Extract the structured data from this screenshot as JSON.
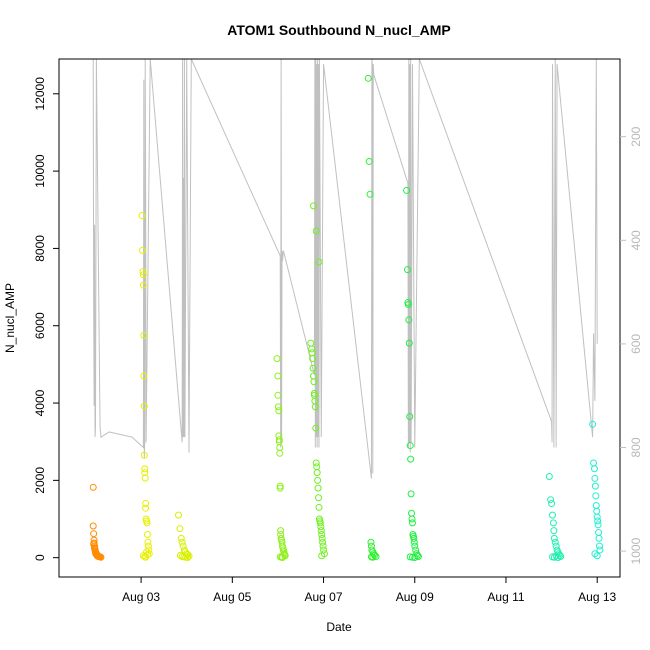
{
  "chart_data": {
    "type": "scatter",
    "title": "ATOM1 Southbound N_nucl_AMP",
    "xlabel": "Date",
    "ylabel": "N_nucl_AMP",
    "x_ticks": [
      "Aug 03",
      "Aug 05",
      "Aug 07",
      "Aug 09",
      "Aug 11",
      "Aug 13"
    ],
    "x_tick_values": [
      3,
      5,
      7,
      9,
      11,
      13
    ],
    "xlim": [
      1.2,
      13.5
    ],
    "ylim": [
      -500,
      12900
    ],
    "y_ticks": [
      0,
      2000,
      4000,
      6000,
      8000,
      10000,
      12000
    ],
    "y_right_ticks": [
      200,
      400,
      600,
      800,
      1000
    ],
    "y_right_lim": [
      1050,
      50
    ],
    "y_right_color": "#c0c0c0",
    "legend": "none",
    "grid": false,
    "point_style": "open-circle",
    "series": [
      {
        "color": "#ff8c00",
        "x": [
          1.95,
          1.95,
          1.96,
          1.97,
          1.97,
          1.98,
          1.98,
          1.99,
          1.99,
          2.0,
          2.0,
          2.01,
          2.02,
          2.03,
          2.04,
          2.05,
          2.06,
          2.08,
          2.1,
          2.12,
          1.96,
          1.98,
          2.0,
          2.02,
          2.04,
          2.06
        ],
        "values": [
          1820,
          820,
          620,
          450,
          380,
          300,
          260,
          220,
          180,
          150,
          120,
          100,
          80,
          60,
          50,
          40,
          30,
          30,
          20,
          10,
          350,
          240,
          160,
          110,
          70,
          40
        ]
      },
      {
        "color": "#e8f000",
        "x": [
          3.02,
          3.03,
          3.04,
          3.05,
          3.05,
          3.06,
          3.06,
          3.07,
          3.07,
          3.08,
          3.08,
          3.09,
          3.1,
          3.1,
          3.11,
          3.12,
          3.13,
          3.14,
          3.15,
          3.16,
          3.17,
          3.18,
          3.05,
          3.08,
          3.1,
          3.12,
          3.14
        ],
        "values": [
          8850,
          7950,
          7400,
          7320,
          7050,
          5750,
          4700,
          3920,
          2650,
          2300,
          2200,
          2060,
          1400,
          1280,
          1000,
          950,
          900,
          600,
          400,
          300,
          200,
          100,
          50,
          20,
          10,
          150,
          80
        ]
      },
      {
        "color": "#d8f000",
        "x": [
          3.82,
          3.85,
          3.88,
          3.9,
          3.92,
          3.95,
          3.97,
          4.0,
          4.02,
          4.05,
          3.86,
          3.9,
          3.94,
          3.98,
          4.02
        ],
        "values": [
          1100,
          750,
          500,
          400,
          300,
          200,
          150,
          100,
          80,
          40,
          60,
          30,
          20,
          10,
          5
        ]
      },
      {
        "color": "#90f020",
        "x": [
          5.98,
          6.0,
          6.0,
          6.01,
          6.02,
          6.02,
          6.03,
          6.03,
          6.04,
          6.04,
          6.05,
          6.05,
          6.06,
          6.06,
          6.07,
          6.08,
          6.09,
          6.1,
          6.11,
          6.12,
          6.13,
          6.14,
          6.15,
          6.16,
          6.05,
          6.08,
          6.1
        ],
        "values": [
          5150,
          4700,
          4200,
          3900,
          3800,
          3150,
          3050,
          3000,
          2850,
          2700,
          1850,
          1800,
          700,
          600,
          500,
          450,
          400,
          300,
          250,
          200,
          150,
          100,
          80,
          50,
          20,
          10,
          5
        ]
      },
      {
        "color": "#70f020",
        "x": [
          6.72,
          6.74,
          6.75,
          6.76,
          6.77,
          6.78,
          6.79,
          6.8,
          6.8,
          6.81,
          6.82,
          6.83,
          6.84,
          6.85,
          6.86,
          6.87,
          6.88,
          6.89,
          6.9,
          6.91,
          6.92,
          6.93,
          6.94,
          6.95,
          6.96,
          6.97,
          6.98,
          6.99,
          7.0,
          7.02,
          6.78,
          6.84,
          6.9,
          6.96
        ],
        "values": [
          5550,
          5400,
          5300,
          5150,
          4900,
          4700,
          4550,
          4250,
          4200,
          4050,
          3900,
          3350,
          2450,
          2350,
          2200,
          2000,
          1800,
          1550,
          1300,
          1000,
          950,
          900,
          800,
          700,
          600,
          500,
          400,
          300,
          200,
          100,
          9100,
          8450,
          7650,
          50
        ]
      },
      {
        "color": "#30f030",
        "x": [
          7.98,
          8.0,
          8.02,
          8.04,
          8.05,
          8.06,
          8.08,
          8.1,
          8.12,
          8.15,
          8.05,
          8.08
        ],
        "values": [
          12400,
          10250,
          9400,
          400,
          300,
          200,
          150,
          100,
          60,
          30,
          20,
          10
        ]
      },
      {
        "color": "#20f040",
        "x": [
          8.82,
          8.84,
          8.85,
          8.86,
          8.87,
          8.88,
          8.89,
          8.9,
          8.91,
          8.92,
          8.93,
          8.94,
          8.95,
          8.96,
          8.97,
          8.98,
          8.99,
          9.0,
          9.02,
          9.04,
          9.06,
          9.08,
          8.9,
          8.95,
          9.0
        ],
        "values": [
          9500,
          7450,
          6600,
          6550,
          6150,
          5550,
          3650,
          2900,
          2550,
          1650,
          1150,
          1000,
          900,
          600,
          550,
          500,
          400,
          300,
          200,
          100,
          60,
          30,
          20,
          10,
          5
        ]
      },
      {
        "color": "#20f0b0",
        "x": [
          11.95,
          11.98,
          12.0,
          12.02,
          12.04,
          12.05,
          12.06,
          12.08,
          12.1,
          12.12,
          12.14,
          12.16,
          12.18,
          12.2,
          12.02,
          12.06,
          12.1,
          12.14
        ],
        "values": [
          2100,
          1500,
          1400,
          1100,
          900,
          700,
          500,
          400,
          300,
          200,
          150,
          100,
          60,
          30,
          20,
          10,
          50,
          5
        ]
      },
      {
        "color": "#20f0d0",
        "x": [
          12.9,
          12.92,
          12.94,
          12.95,
          12.96,
          12.97,
          12.98,
          12.99,
          13.0,
          13.01,
          13.02,
          13.03,
          13.04,
          13.05,
          13.06,
          12.95,
          13.0
        ],
        "values": [
          3450,
          2450,
          2300,
          2050,
          1850,
          1600,
          1350,
          1200,
          1050,
          950,
          850,
          650,
          500,
          300,
          200,
          100,
          50
        ]
      }
    ],
    "secondary_series": {
      "color": "#c0c0c0",
      "type": "line",
      "x": [
        1.95,
        1.96,
        1.97,
        1.98,
        1.99,
        2.0,
        2.01,
        2.02,
        2.1,
        2.12,
        2.3,
        2.8,
        3.05,
        3.06,
        3.07,
        3.08,
        3.09,
        3.1,
        3.11,
        3.2,
        3.9,
        3.91,
        3.92,
        3.93,
        3.94,
        3.95,
        3.96,
        4.0,
        4.05,
        4.1,
        6.05,
        6.06,
        6.07,
        6.08,
        6.09,
        6.1,
        6.12,
        6.8,
        6.81,
        6.82,
        6.83,
        6.84,
        6.85,
        6.86,
        6.87,
        6.88,
        6.89,
        6.9,
        6.91,
        6.95,
        7.0,
        8.05,
        8.06,
        8.07,
        8.08,
        8.09,
        8.1,
        8.85,
        8.86,
        8.87,
        8.88,
        8.89,
        8.9,
        8.91,
        8.92,
        8.95,
        9.0,
        9.1,
        12.0,
        12.01,
        12.02,
        12.05,
        12.08,
        12.1,
        12.12,
        12.9,
        12.92,
        12.95,
        12.98,
        13.0
      ],
      "values": [
        50,
        520,
        720,
        370,
        780,
        760,
        420,
        50,
        760,
        780,
        770,
        780,
        800,
        90,
        820,
        790,
        50,
        320,
        790,
        50,
        790,
        50,
        780,
        280,
        780,
        50,
        780,
        50,
        810,
        50,
        430,
        800,
        50,
        790,
        420,
        440,
        420,
        660,
        50,
        800,
        50,
        780,
        60,
        800,
        50,
        780,
        60,
        800,
        50,
        780,
        60,
        860,
        50,
        60,
        850,
        60,
        80,
        290,
        800,
        50,
        790,
        60,
        810,
        50,
        790,
        60,
        800,
        50,
        750,
        790,
        60,
        800,
        50,
        800,
        60,
        780,
        580,
        710,
        50,
        600
      ]
    }
  }
}
